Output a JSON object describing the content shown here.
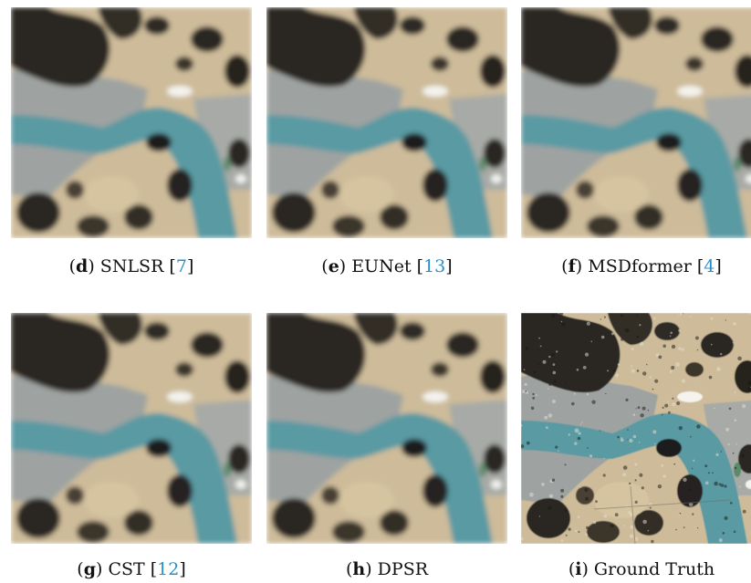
{
  "figure": {
    "panels": [
      {
        "id": "d",
        "letter": "d",
        "label": "SNLSR",
        "ref": "7",
        "kind": "blur"
      },
      {
        "id": "e",
        "letter": "e",
        "label": "EUNet",
        "ref": "13",
        "kind": "blur"
      },
      {
        "id": "f",
        "letter": "f",
        "label": "MSDformer",
        "ref": "4",
        "kind": "blur"
      },
      {
        "id": "g",
        "letter": "g",
        "label": "CST",
        "ref": "12",
        "kind": "blur"
      },
      {
        "id": "h",
        "letter": "h",
        "label": "DPSR",
        "ref": "",
        "kind": "blur"
      },
      {
        "id": "i",
        "letter": "i",
        "label": "Ground Truth",
        "ref": "",
        "kind": "sharp"
      }
    ]
  }
}
